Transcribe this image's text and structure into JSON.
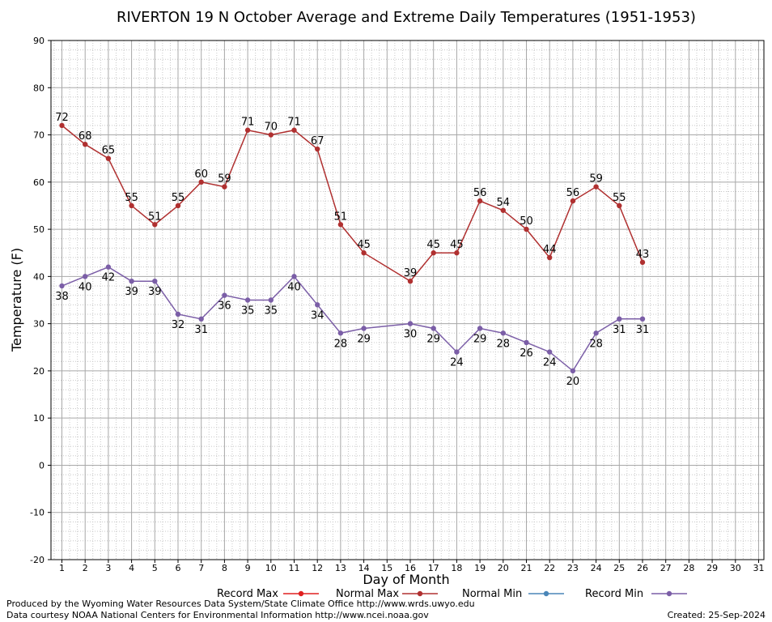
{
  "chart_data": {
    "type": "line",
    "title": "RIVERTON 19 N October Average and Extreme Daily Temperatures (1951-1953)",
    "xlabel": "Day of Month",
    "ylabel": "Temperature (F)",
    "xlim": [
      1,
      31
    ],
    "ylim": [
      -20,
      90
    ],
    "y_ticks": [
      -20,
      -10,
      0,
      10,
      20,
      30,
      40,
      50,
      60,
      70,
      80,
      90
    ],
    "x_ticks": [
      1,
      2,
      3,
      4,
      5,
      6,
      7,
      8,
      9,
      10,
      11,
      12,
      13,
      14,
      15,
      16,
      17,
      18,
      19,
      20,
      21,
      22,
      23,
      24,
      25,
      26,
      27,
      28,
      29,
      30,
      31
    ],
    "grid": true,
    "legend_position": "bottom",
    "series": [
      {
        "name": "Record Max",
        "color": "#b03030",
        "x": [
          1,
          2,
          3,
          4,
          5,
          6,
          7,
          8,
          9,
          10,
          11,
          12,
          13,
          14,
          16,
          17,
          18,
          19,
          20,
          21,
          22,
          23,
          24,
          25,
          26
        ],
        "values": [
          72,
          68,
          65,
          55,
          51,
          55,
          60,
          59,
          71,
          70,
          71,
          67,
          51,
          45,
          39,
          45,
          45,
          56,
          54,
          50,
          44,
          56,
          59,
          55,
          43
        ]
      },
      {
        "name": "Record Min",
        "color": "#7b5ea7",
        "x": [
          1,
          2,
          3,
          4,
          5,
          6,
          7,
          8,
          9,
          10,
          11,
          12,
          13,
          14,
          16,
          17,
          18,
          19,
          20,
          21,
          22,
          23,
          24,
          25,
          26
        ],
        "values": [
          38,
          40,
          42,
          39,
          39,
          32,
          31,
          36,
          35,
          35,
          40,
          34,
          28,
          29,
          30,
          29,
          24,
          29,
          28,
          26,
          24,
          20,
          28,
          31,
          31
        ]
      }
    ],
    "legend": [
      {
        "name": "Record Max",
        "color": "#e02020"
      },
      {
        "name": "Normal Max",
        "color": "#b03030"
      },
      {
        "name": "Normal Min",
        "color": "#4a86b8"
      },
      {
        "name": "Record Min",
        "color": "#7b5ea7"
      }
    ]
  },
  "footer": {
    "produced_by": "Produced by the Wyoming Water Resources Data System/State Climate Office http://www.wrds.uwyo.edu",
    "courtesy": "Data courtesy NOAA National Centers for Environmental Information http://www.ncei.noaa.gov",
    "created": "Created: 25-Sep-2024"
  }
}
